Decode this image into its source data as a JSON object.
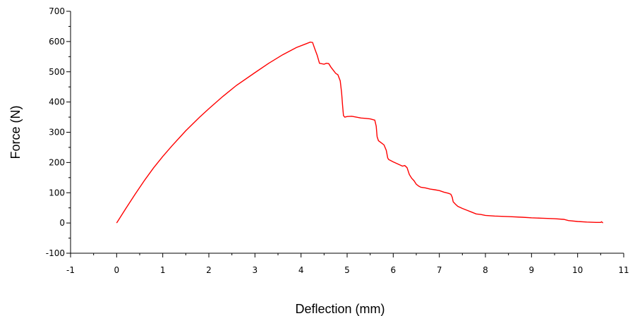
{
  "chart_data": {
    "type": "line",
    "title": "",
    "xlabel": "Deflection (mm)",
    "ylabel": "Force (N)",
    "xlim": [
      -1,
      11
    ],
    "ylim": [
      -100,
      700
    ],
    "x_ticks": [
      -1,
      0,
      1,
      2,
      3,
      4,
      5,
      6,
      7,
      8,
      9,
      10,
      11
    ],
    "y_ticks": [
      -100,
      0,
      100,
      200,
      300,
      400,
      500,
      600,
      700
    ],
    "grid": false,
    "legend": "none",
    "series": [
      {
        "color": "#ff0000",
        "x": [
          0,
          0.05,
          0.1,
          0.2,
          0.4,
          0.6,
          0.8,
          1.0,
          1.2,
          1.5,
          1.8,
          2.0,
          2.3,
          2.6,
          3.0,
          3.3,
          3.6,
          3.9,
          4.1,
          4.2,
          4.25,
          4.3,
          4.35,
          4.4,
          4.5,
          4.55,
          4.6,
          4.65,
          4.7,
          4.75,
          4.8,
          4.85,
          4.88,
          4.9,
          4.92,
          4.95,
          5.0,
          5.1,
          5.2,
          5.3,
          5.4,
          5.5,
          5.6,
          5.63,
          5.65,
          5.68,
          5.7,
          5.75,
          5.8,
          5.85,
          5.88,
          5.9,
          6.0,
          6.1,
          6.2,
          6.25,
          6.3,
          6.35,
          6.4,
          6.45,
          6.5,
          6.55,
          6.6,
          6.7,
          6.8,
          6.9,
          7.0,
          7.1,
          7.2,
          7.25,
          7.28,
          7.3,
          7.35,
          7.4,
          7.5,
          7.6,
          7.7,
          7.8,
          7.9,
          8.0,
          8.2,
          8.5,
          8.8,
          9.0,
          9.2,
          9.5,
          9.7,
          9.8,
          10.0,
          10.2,
          10.4,
          10.5,
          10.52,
          10.55
        ],
        "y": [
          0,
          12,
          24,
          48,
          95,
          140,
          182,
          220,
          255,
          305,
          350,
          378,
          418,
          455,
          497,
          528,
          556,
          580,
          592,
          598,
          597,
          575,
          555,
          528,
          525,
          528,
          527,
          515,
          505,
          495,
          490,
          470,
          430,
          390,
          355,
          350,
          352,
          353,
          350,
          347,
          346,
          344,
          340,
          320,
          285,
          272,
          270,
          264,
          258,
          240,
          215,
          210,
          202,
          195,
          188,
          190,
          183,
          160,
          148,
          140,
          128,
          122,
          118,
          116,
          112,
          110,
          107,
          102,
          98,
          95,
          85,
          70,
          62,
          55,
          48,
          42,
          36,
          30,
          28,
          25,
          23,
          21,
          19,
          17,
          16,
          14,
          12,
          8,
          5,
          3,
          2,
          2,
          4,
          0
        ]
      }
    ]
  }
}
